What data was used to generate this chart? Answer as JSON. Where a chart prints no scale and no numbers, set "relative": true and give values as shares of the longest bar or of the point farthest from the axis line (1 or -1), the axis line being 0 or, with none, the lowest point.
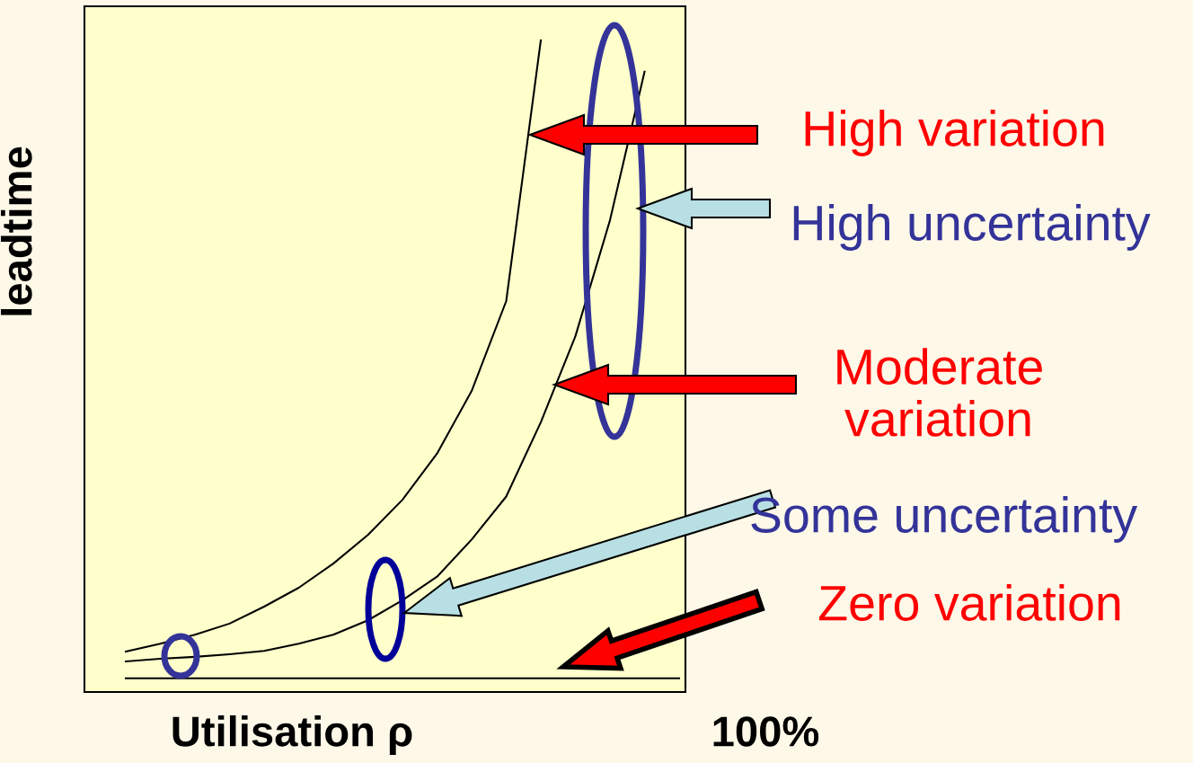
{
  "chart_data": {
    "type": "line",
    "relative": true,
    "xlabel": "Utilisation ρ",
    "ylabel": "leadtime",
    "categories": [
      null,
      null,
      null,
      null,
      null,
      null,
      null,
      null,
      null,
      null,
      null,
      null,
      null,
      null,
      null,
      null,
      null
    ],
    "series": [
      {
        "color": "#000000",
        "values": [
          0.062,
          0.074,
          0.088,
          0.105,
          0.131,
          0.16,
          0.197,
          0.241,
          0.295,
          0.366,
          0.462,
          0.6,
          1.0,
          null,
          null,
          null,
          null
        ]
      },
      {
        "color": "#000000",
        "values": [
          0.047,
          0.051,
          0.054,
          0.058,
          0.063,
          0.074,
          0.088,
          0.11,
          0.141,
          0.177,
          0.234,
          0.3,
          0.414,
          0.546,
          0.724,
          0.952,
          null
        ]
      },
      {
        "color": "#000000",
        "values": [
          0.021,
          0.021,
          0.021,
          0.021,
          0.021,
          0.021,
          0.021,
          0.021,
          0.021,
          0.021,
          0.021,
          0.021,
          0.021,
          0.021,
          0.021,
          0.021,
          0.021
        ]
      }
    ],
    "annotations": [
      "High variation",
      "High uncertainty",
      "Moderate\nvariation",
      "Some uncertainty",
      "Zero variation",
      "100%"
    ],
    "grid": false,
    "marker": "none",
    "line_style": "solid"
  }
}
